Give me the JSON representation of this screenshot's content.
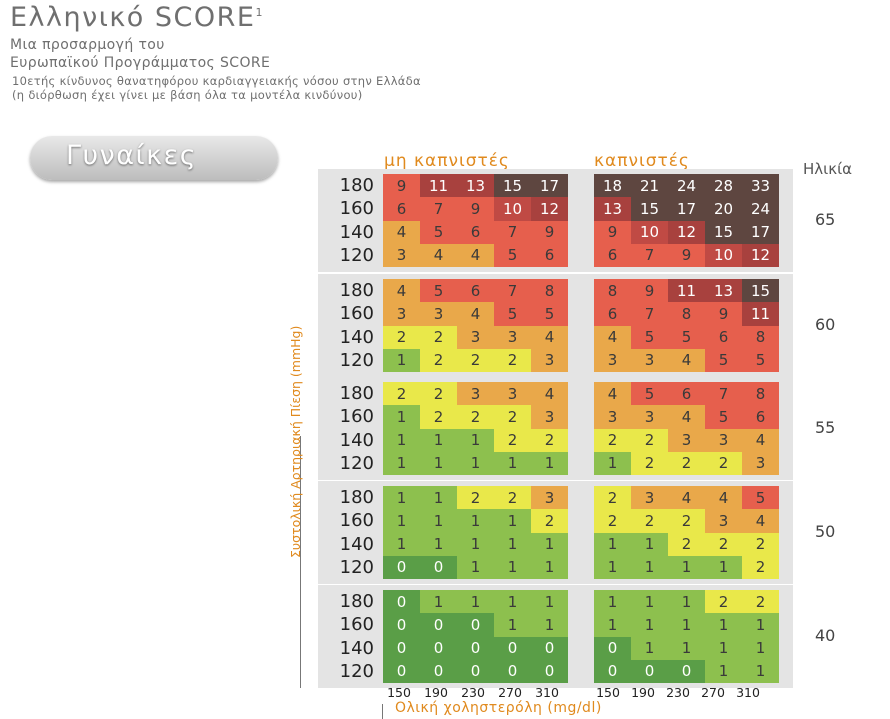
{
  "header": {
    "title": "Ελληνικό SCORE",
    "title_sup": "1",
    "subtitle_line1": "Μια προσαρμογή του",
    "subtitle_line2": "Ευρωπαϊκού Προγράμματος SCORE",
    "note_line1": "10ετής κίνδυνος θανατηφόρου καρδιαγγειακής νόσου στην Ελλάδα",
    "note_line2": "(η διόρθωση έχει γίνει με βάση όλα τα μοντέλα κινδύνου)"
  },
  "gender_label": "Γυναίκες",
  "colors": {
    "accent_orange": "#e08a1e",
    "risk_palette": {
      "0": "#5a9e47",
      "1": "#8dc04e",
      "2": "#e9e84a",
      "3": "#e9a84a",
      "4": "#e9a84a",
      "5": "#e65f4d",
      "6": "#e65f4d",
      "7": "#e65f4d",
      "8": "#e65f4d",
      "9": "#e65f4d",
      "10": "#c04a44",
      "11": "#a8413e",
      "12": "#a8413e",
      "13": "#a8413e",
      "15": "#5e4640",
      "high": "#5e4640"
    }
  },
  "chart_data": {
    "type": "heatmap",
    "title": "Ελληνικό SCORE",
    "column_groups": [
      "μη καπνιστές",
      "καπνιστές"
    ],
    "x_ticks": [
      "150",
      "190",
      "230",
      "270",
      "310"
    ],
    "xlabel": "Ολική χοληστερόλη (mg/dl)",
    "y_ticks": [
      "180",
      "160",
      "140",
      "120"
    ],
    "ylabel": "Συστολική Αρτηριακή Πίεση (mmHg)",
    "age_label": "Ηλικία",
    "ages": [
      "65",
      "60",
      "55",
      "50",
      "40"
    ],
    "blocks": [
      {
        "age": "65",
        "non_smokers": [
          [
            9,
            11,
            13,
            15,
            17
          ],
          [
            6,
            7,
            9,
            10,
            12
          ],
          [
            4,
            5,
            6,
            7,
            9
          ],
          [
            3,
            4,
            4,
            5,
            6
          ]
        ],
        "smokers": [
          [
            18,
            21,
            24,
            28,
            33
          ],
          [
            13,
            15,
            17,
            20,
            24
          ],
          [
            9,
            10,
            12,
            15,
            17
          ],
          [
            6,
            7,
            9,
            10,
            12
          ]
        ]
      },
      {
        "age": "60",
        "non_smokers": [
          [
            4,
            5,
            6,
            7,
            8
          ],
          [
            3,
            3,
            4,
            5,
            5
          ],
          [
            2,
            2,
            3,
            3,
            4
          ],
          [
            1,
            2,
            2,
            2,
            3
          ]
        ],
        "smokers": [
          [
            8,
            9,
            11,
            13,
            15
          ],
          [
            6,
            7,
            8,
            9,
            11
          ],
          [
            4,
            5,
            5,
            6,
            8
          ],
          [
            3,
            3,
            4,
            5,
            5
          ]
        ]
      },
      {
        "age": "55",
        "non_smokers": [
          [
            2,
            2,
            3,
            3,
            4
          ],
          [
            1,
            2,
            2,
            2,
            3
          ],
          [
            1,
            1,
            1,
            2,
            2
          ],
          [
            1,
            1,
            1,
            1,
            1
          ]
        ],
        "smokers": [
          [
            4,
            5,
            6,
            7,
            8
          ],
          [
            3,
            3,
            4,
            5,
            6
          ],
          [
            2,
            2,
            3,
            3,
            4
          ],
          [
            1,
            2,
            2,
            2,
            3
          ]
        ]
      },
      {
        "age": "50",
        "non_smokers": [
          [
            1,
            1,
            2,
            2,
            3
          ],
          [
            1,
            1,
            1,
            1,
            2
          ],
          [
            1,
            1,
            1,
            1,
            1
          ],
          [
            0,
            0,
            1,
            1,
            1
          ]
        ],
        "smokers": [
          [
            2,
            3,
            4,
            4,
            5
          ],
          [
            2,
            2,
            2,
            3,
            4
          ],
          [
            1,
            1,
            2,
            2,
            2
          ],
          [
            1,
            1,
            1,
            1,
            2
          ]
        ]
      },
      {
        "age": "40",
        "non_smokers": [
          [
            0,
            1,
            1,
            1,
            1
          ],
          [
            0,
            0,
            0,
            1,
            1
          ],
          [
            0,
            0,
            0,
            0,
            0
          ],
          [
            0,
            0,
            0,
            0,
            0
          ]
        ],
        "smokers": [
          [
            1,
            1,
            1,
            2,
            2
          ],
          [
            1,
            1,
            1,
            1,
            1
          ],
          [
            0,
            1,
            1,
            1,
            1
          ],
          [
            0,
            0,
            0,
            1,
            1
          ]
        ]
      }
    ]
  }
}
